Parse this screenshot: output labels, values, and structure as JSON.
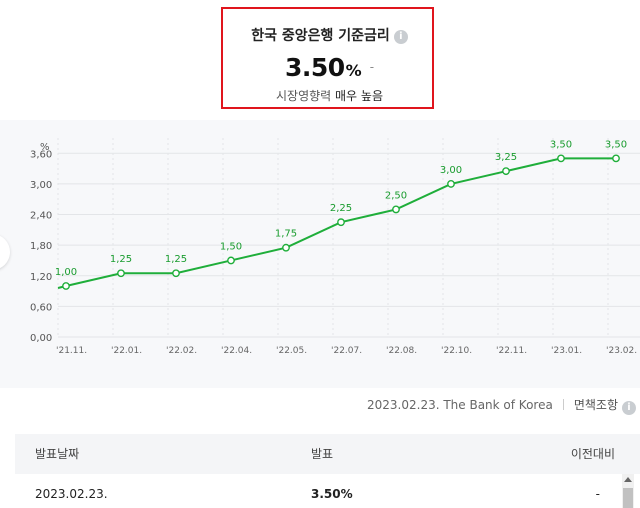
{
  "header": {
    "title": "한국 중앙은행 기준금리",
    "info_icon_glyph": "i",
    "rate_value": "3.50",
    "rate_unit": "%",
    "rate_change": "-",
    "impact_prefix": "시장영향력 ",
    "impact_level": "매우 높음"
  },
  "colors": {
    "highlight_border": "#e0151d",
    "line": "#1fae3a",
    "label": "#1a9c2f"
  },
  "chart_data": {
    "type": "line",
    "ylabel": "%",
    "ylim": [
      0,
      3.9
    ],
    "y_ticks": [
      "0,00",
      "0,60",
      "1,20",
      "1,80",
      "2,40",
      "3,00",
      "3,60"
    ],
    "categories": [
      "'21.11.",
      "'22.01.",
      "'22.02.",
      "'22.04.",
      "'22.05.",
      "'22.07.",
      "'22.08.",
      "'22.10.",
      "'22.11.",
      "'23.01.",
      "'23.02."
    ],
    "values": [
      1.0,
      1.25,
      1.25,
      1.5,
      1.75,
      2.25,
      2.5,
      3.0,
      3.25,
      3.5,
      3.5
    ],
    "value_labels": [
      "1,00",
      "1,25",
      "1,25",
      "1,50",
      "1,75",
      "2,25",
      "2,50",
      "3,00",
      "3,25",
      "3,50",
      "3,50"
    ],
    "grid": true
  },
  "source": {
    "date_source": "2023.02.23. The Bank of Korea",
    "disclaimer": "면책조항",
    "disclaimer_icon_glyph": "i"
  },
  "table": {
    "headers": [
      "발표날짜",
      "발표",
      "이전대비"
    ],
    "rows": [
      [
        "2023.02.23.",
        "3.50%",
        "-"
      ]
    ]
  }
}
